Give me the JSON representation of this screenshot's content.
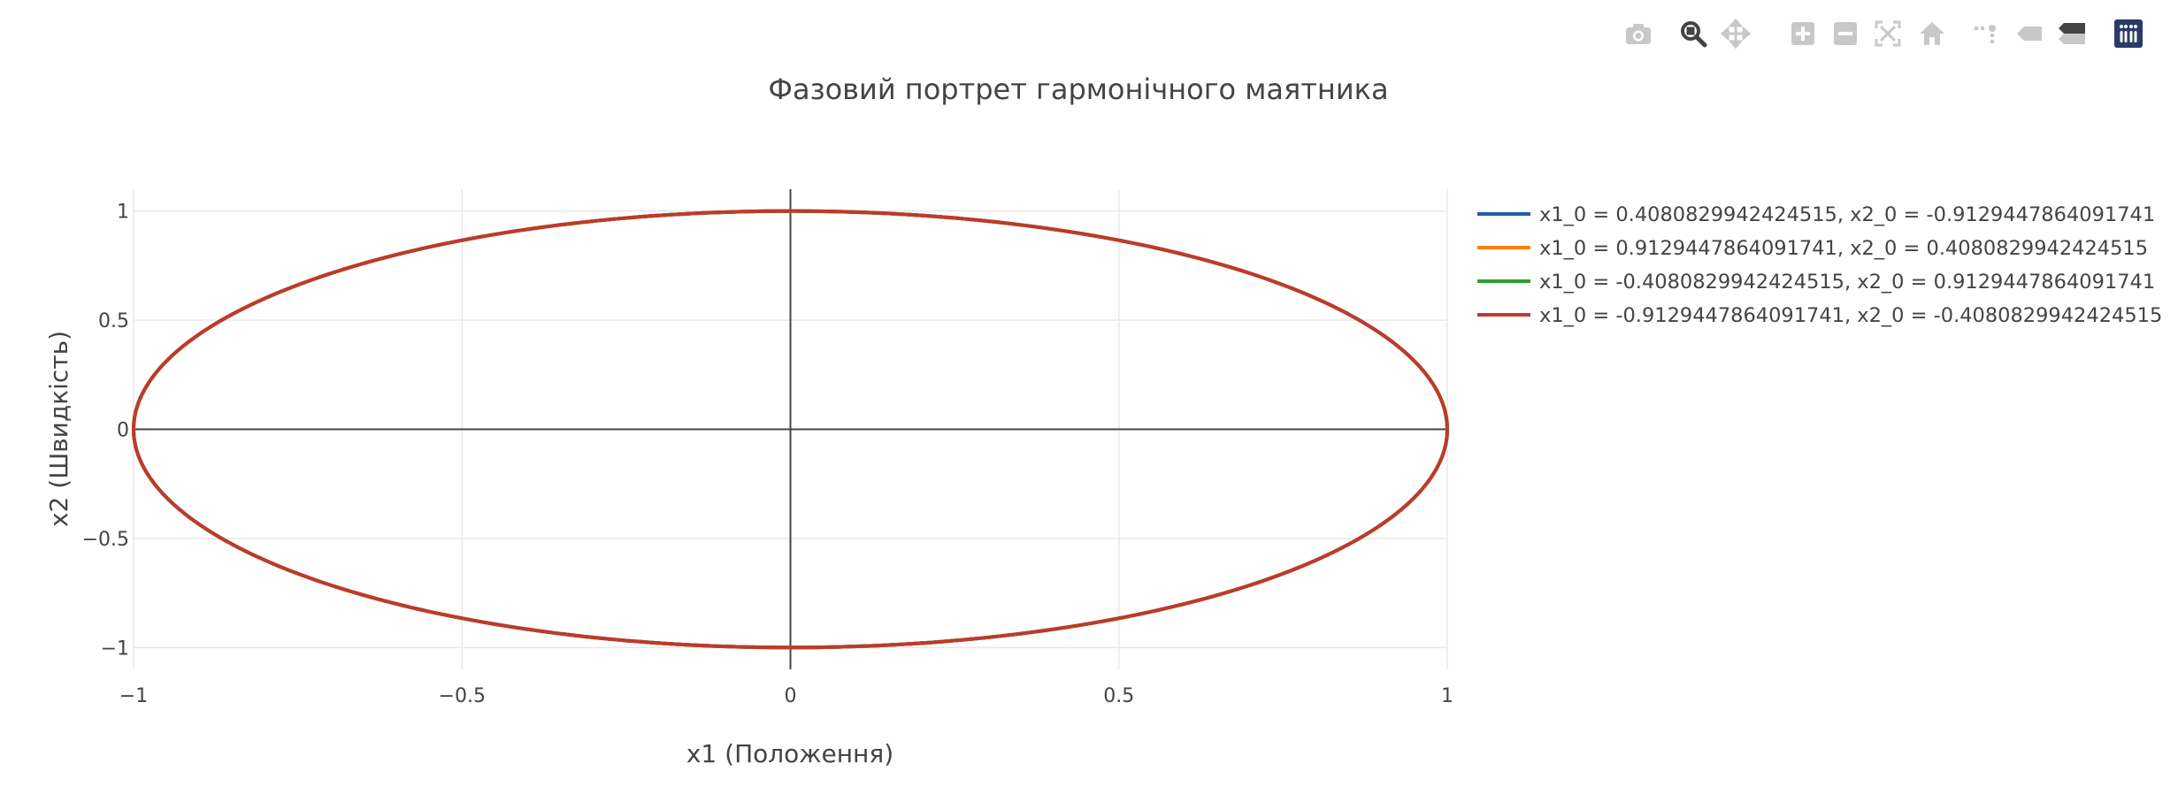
{
  "modebar": [
    {
      "name": "camera-icon"
    },
    {
      "name": "zoom-icon"
    },
    {
      "name": "pan-icon"
    },
    {
      "name": "zoom-in-icon"
    },
    {
      "name": "zoom-out-icon"
    },
    {
      "name": "autoscale-icon"
    },
    {
      "name": "home-icon"
    },
    {
      "name": "spike-lines-icon"
    },
    {
      "name": "hover-closest-icon"
    },
    {
      "name": "hover-compare-icon"
    },
    {
      "name": "plotly-logo-icon"
    }
  ],
  "colors": {
    "series": [
      "#1f5fa6",
      "#ff7f0e",
      "#2ca02c",
      "#c0392b"
    ],
    "grid": "#e8e8e8",
    "zeroline": "#444444",
    "modebar_icon": "#c8c8c8",
    "modebar_active": "#444444",
    "plotly_logo": "#2b3a67"
  },
  "chart_data": {
    "type": "line",
    "title": "Фазовий портрет гармонічного маятника",
    "xlabel": "x1 (Положення)",
    "ylabel": "x2 (Швидкість)",
    "xlim": [
      -1,
      1
    ],
    "ylim": [
      -1.1,
      1.1
    ],
    "xticks": [
      -1,
      -0.5,
      0,
      0.5,
      1
    ],
    "xtick_labels": [
      "−1",
      "−0.5",
      "0",
      "0.5",
      "1"
    ],
    "yticks": [
      -1,
      -0.5,
      0,
      0.5,
      1
    ],
    "ytick_labels": [
      "−1",
      "−0.5",
      "0",
      "0.5",
      "1"
    ],
    "grid": true,
    "legend_position": "right",
    "series": [
      {
        "name": "x1_0 = 0.4080829942424515, x2_0 = -0.9129447864091741",
        "x0": 0.4080829942424515,
        "y0": -0.9129447864091741
      },
      {
        "name": "x1_0 = 0.9129447864091741, x2_0 = 0.4080829942424515",
        "x0": 0.9129447864091741,
        "y0": 0.4080829942424515
      },
      {
        "name": "x1_0 = -0.4080829942424515, x2_0 = 0.9129447864091741",
        "x0": -0.4080829942424515,
        "y0": 0.9129447864091741
      },
      {
        "name": "x1_0 = -0.9129447864091741, x2_0 = -0.4080829942424515",
        "x0": -0.9129447864091741,
        "y0": -0.4080829942424515
      }
    ]
  }
}
